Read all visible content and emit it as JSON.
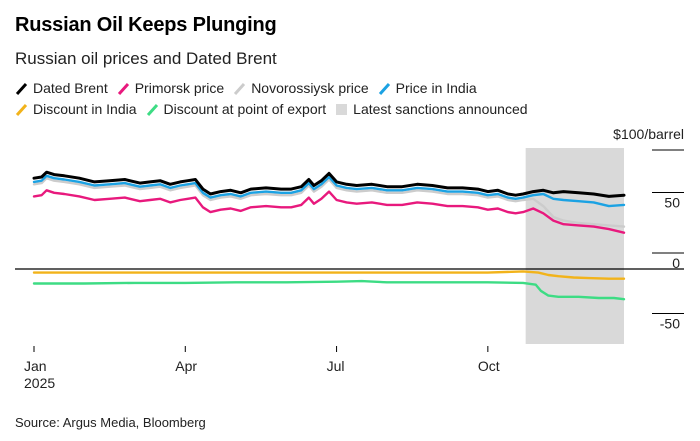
{
  "title": "Russian Oil Keeps Plunging",
  "subtitle": "Russian oil prices and Dated Brent",
  "source": "Source: Argus Media, Bloomberg",
  "chart_data": {
    "type": "line",
    "unit_label": "$100/barrel",
    "y_ticks": [
      {
        "value": 50,
        "label": "50"
      },
      {
        "value": 0,
        "label": "0"
      },
      {
        "value": -50,
        "label": "-50"
      }
    ],
    "ylim": [
      -62,
      100
    ],
    "x_ticks": [
      {
        "value": 0,
        "label": "Jan",
        "sublabel": "2025"
      },
      {
        "value": 3,
        "label": "Apr",
        "sublabel": ""
      },
      {
        "value": 6,
        "label": "Jul",
        "sublabel": ""
      },
      {
        "value": 9,
        "label": "Oct",
        "sublabel": ""
      }
    ],
    "xlim": [
      0,
      11.7
    ],
    "grid": false,
    "zero_line": true,
    "legend_position": "top",
    "shaded_region": {
      "name": "Latest sanctions announced",
      "x": [
        9.75,
        11.7
      ],
      "color": "#d9d9d9"
    },
    "series": [
      {
        "name": "Dated Brent",
        "color": "#000000",
        "x": [
          0,
          0.15,
          0.25,
          0.4,
          0.6,
          0.9,
          1.2,
          1.5,
          1.8,
          2.1,
          2.3,
          2.5,
          2.7,
          2.9,
          3.05,
          3.2,
          3.35,
          3.5,
          3.7,
          3.9,
          4.1,
          4.3,
          4.6,
          4.9,
          5.1,
          5.3,
          5.45,
          5.55,
          5.7,
          5.85,
          6.0,
          6.2,
          6.4,
          6.7,
          7.0,
          7.3,
          7.6,
          7.9,
          8.2,
          8.5,
          8.8,
          9.0,
          9.2,
          9.4,
          9.55,
          9.7,
          9.9,
          10.1,
          10.3,
          10.5,
          10.8,
          11.1,
          11.4,
          11.7
        ],
        "values": [
          75,
          76,
          80,
          78,
          77,
          75,
          72,
          73,
          74,
          71,
          72,
          73,
          70,
          72,
          73,
          74,
          66,
          62,
          64,
          65,
          63,
          66,
          67,
          66,
          66,
          68,
          74,
          69,
          73,
          79,
          72,
          70,
          69,
          70,
          68,
          68,
          70,
          69,
          67,
          67,
          66,
          64,
          65,
          62,
          61,
          62,
          64,
          65,
          63,
          64,
          63,
          62,
          60,
          61
        ]
      },
      {
        "name": "Price in India",
        "color": "#1ba2e3",
        "x": [
          0,
          0.15,
          0.25,
          0.4,
          0.6,
          0.9,
          1.2,
          1.5,
          1.8,
          2.1,
          2.3,
          2.5,
          2.7,
          2.9,
          3.05,
          3.2,
          3.35,
          3.5,
          3.7,
          3.9,
          4.1,
          4.3,
          4.6,
          4.9,
          5.1,
          5.3,
          5.45,
          5.55,
          5.7,
          5.85,
          6.0,
          6.2,
          6.4,
          6.7,
          7.0,
          7.3,
          7.6,
          7.9,
          8.2,
          8.5,
          8.8,
          9.0,
          9.2,
          9.4,
          9.55,
          9.7,
          9.9,
          10.1,
          10.3,
          10.5,
          10.8,
          11.1,
          11.4,
          11.7
        ],
        "values": [
          72,
          73,
          77,
          75,
          74,
          72,
          69,
          70,
          71,
          68,
          69,
          70,
          67,
          69,
          70,
          71,
          63,
          59,
          61,
          62,
          60,
          63,
          64,
          63,
          63,
          65,
          71,
          66,
          70,
          76,
          69,
          67,
          66,
          67,
          65,
          65,
          67,
          66,
          64,
          64,
          63,
          61,
          62,
          59,
          58,
          59,
          61,
          62,
          58,
          57,
          56,
          55,
          52,
          53
        ]
      },
      {
        "name": "Novorossiysk price",
        "color": "#cccccc",
        "x": [
          0,
          0.15,
          0.25,
          0.4,
          0.6,
          0.9,
          1.2,
          1.5,
          1.8,
          2.1,
          2.3,
          2.5,
          2.7,
          2.9,
          3.05,
          3.2,
          3.35,
          3.5,
          3.7,
          3.9,
          4.1,
          4.3,
          4.6,
          4.9,
          5.1,
          5.3,
          5.45,
          5.55,
          5.7,
          5.85,
          6.0,
          6.2,
          6.4,
          6.7,
          7.0,
          7.3,
          7.6,
          7.9,
          8.2,
          8.5,
          8.8,
          9.0,
          9.2,
          9.4,
          9.55,
          9.7,
          9.9,
          10.1,
          10.3,
          10.5,
          10.8,
          11.1,
          11.4,
          11.7
        ],
        "values": [
          70,
          71,
          75,
          73,
          72,
          70,
          67,
          68,
          69,
          66,
          67,
          68,
          65,
          67,
          68,
          69,
          61,
          57,
          59,
          60,
          58,
          61,
          62,
          61,
          61,
          63,
          69,
          64,
          68,
          74,
          67,
          65,
          64,
          65,
          63,
          63,
          65,
          64,
          62,
          62,
          61,
          59,
          60,
          57,
          56,
          57,
          58,
          52,
          43,
          40,
          38,
          37,
          36,
          35
        ]
      },
      {
        "name": "Primorsk price",
        "color": "#e8197d",
        "x": [
          0,
          0.15,
          0.25,
          0.4,
          0.6,
          0.9,
          1.2,
          1.5,
          1.8,
          2.1,
          2.3,
          2.5,
          2.7,
          2.9,
          3.05,
          3.2,
          3.35,
          3.5,
          3.7,
          3.9,
          4.1,
          4.3,
          4.6,
          4.9,
          5.1,
          5.3,
          5.45,
          5.55,
          5.7,
          5.85,
          6.0,
          6.2,
          6.4,
          6.7,
          7.0,
          7.3,
          7.6,
          7.9,
          8.2,
          8.5,
          8.8,
          9.0,
          9.2,
          9.4,
          9.55,
          9.7,
          9.9,
          10.1,
          10.3,
          10.5,
          10.8,
          11.1,
          11.4,
          11.7
        ],
        "values": [
          60,
          61,
          65,
          63,
          62,
          60,
          57,
          58,
          59,
          56,
          57,
          58,
          55,
          57,
          58,
          59,
          51,
          47,
          49,
          50,
          48,
          51,
          52,
          51,
          51,
          53,
          59,
          54,
          58,
          64,
          57,
          55,
          54,
          55,
          53,
          53,
          55,
          54,
          52,
          52,
          51,
          49,
          50,
          47,
          46,
          47,
          50,
          46,
          40,
          37,
          36,
          35,
          33,
          30
        ]
      },
      {
        "name": "Discount in India",
        "color": "#f2b31a",
        "x": [
          0,
          1,
          2,
          3,
          4,
          5,
          6,
          7,
          8,
          9,
          9.7,
          10.0,
          10.2,
          10.4,
          10.7,
          11.0,
          11.4,
          11.7
        ],
        "values": [
          -3,
          -3,
          -3,
          -3,
          -3,
          -3,
          -3,
          -3,
          -3,
          -3,
          -2,
          -3,
          -5,
          -6,
          -7,
          -7.5,
          -8,
          -8
        ]
      },
      {
        "name": "Discount at point of export",
        "color": "#3ddc84",
        "x": [
          0,
          1,
          2,
          3,
          4,
          5,
          6,
          6.5,
          7,
          7.5,
          8,
          8.5,
          9,
          9.7,
          9.95,
          10.05,
          10.2,
          10.4,
          10.8,
          11.2,
          11.5,
          11.7
        ],
        "values": [
          -12,
          -12,
          -11.5,
          -11.5,
          -11,
          -11,
          -10.5,
          -10,
          -11,
          -11,
          -11,
          -11,
          -11,
          -11.5,
          -13,
          -18,
          -22,
          -23,
          -23,
          -24,
          -24,
          -25
        ]
      }
    ]
  }
}
